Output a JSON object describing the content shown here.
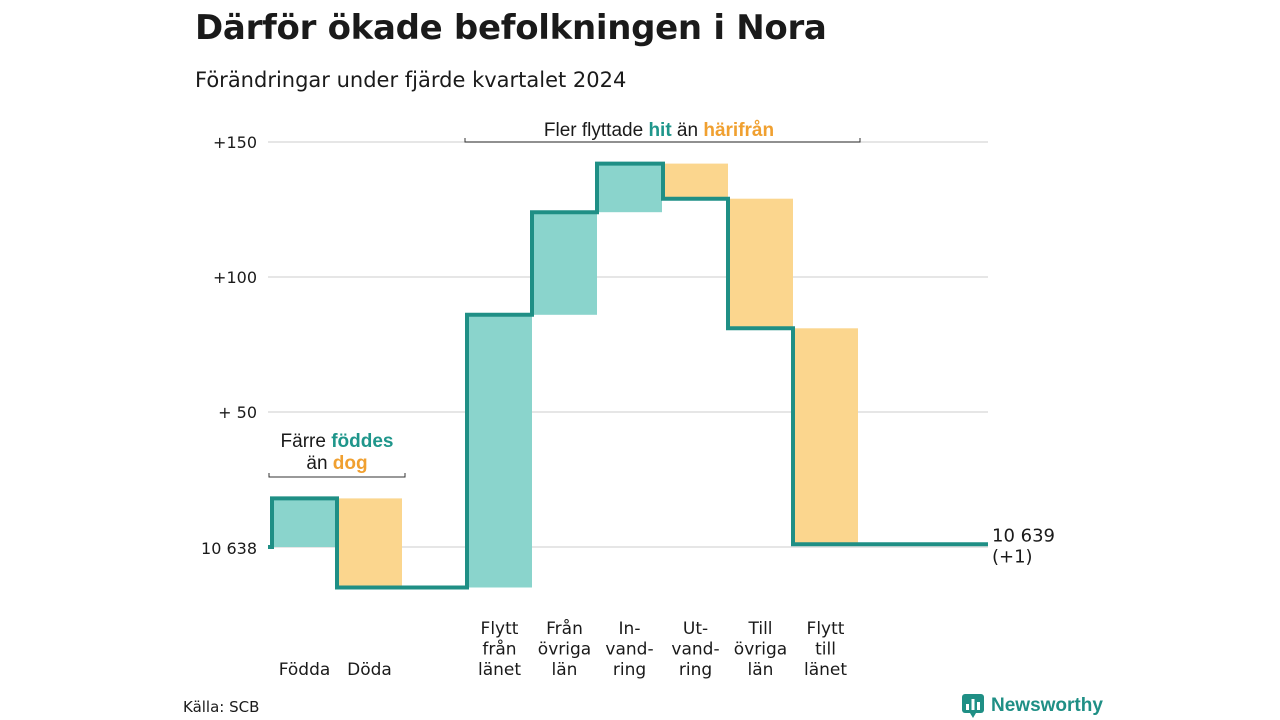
{
  "title": "Därför ökade befolkningen i Nora",
  "subtitle": "Förändringar under fjärde kvartalet 2024",
  "source": "Källa: SCB",
  "brand": {
    "name": "Newsworthy",
    "icon": "chart-logo-icon"
  },
  "colors": {
    "increase": "#8ad4cc",
    "decrease": "#fbd68e",
    "line": "#1f8f85",
    "accent_teal": "#1f968b",
    "accent_orange": "#f0a030",
    "grid": "#dddddd"
  },
  "chart_data": {
    "type": "waterfall",
    "baseline": 10638,
    "baseline_label": "10 638",
    "y_ticks": [
      {
        "offset": 50,
        "label": "+ 50"
      },
      {
        "offset": 100,
        "label": "+100"
      },
      {
        "offset": 150,
        "label": "+150"
      }
    ],
    "ylim": [
      -16,
      150
    ],
    "steps": [
      {
        "label": [
          "Födda"
        ],
        "change": 18
      },
      {
        "label": [
          "Döda"
        ],
        "change": -33
      },
      {
        "label": [
          "Flytt",
          "från",
          "länet"
        ],
        "change": 101
      },
      {
        "label": [
          "Från",
          "övriga",
          "län"
        ],
        "change": 38
      },
      {
        "label": [
          "In-",
          "vand-",
          "ring"
        ],
        "change": 18
      },
      {
        "label": [
          "Ut-",
          "vand-",
          "ring"
        ],
        "change": -13
      },
      {
        "label": [
          "Till",
          "övriga",
          "län"
        ],
        "change": -48
      },
      {
        "label": [
          "Flytt",
          "till",
          "länet"
        ],
        "change": -80
      }
    ],
    "end_label": [
      "10 639",
      "(+1)"
    ],
    "annotations": [
      {
        "name": "births-deaths-annotation",
        "lines": [
          [
            {
              "text": "Färre ",
              "color": "text"
            },
            {
              "text": "föddes",
              "color": "teal"
            }
          ],
          [
            {
              "text": "än ",
              "color": "text"
            },
            {
              "text": "dog",
              "color": "orange"
            }
          ]
        ]
      },
      {
        "name": "migration-annotation",
        "lines": [
          [
            {
              "text": "Fler flyttade ",
              "color": "text"
            },
            {
              "text": "hit",
              "color": "teal"
            },
            {
              "text": " än ",
              "color": "text"
            },
            {
              "text": "härifrån",
              "color": "orange"
            }
          ]
        ]
      }
    ]
  }
}
